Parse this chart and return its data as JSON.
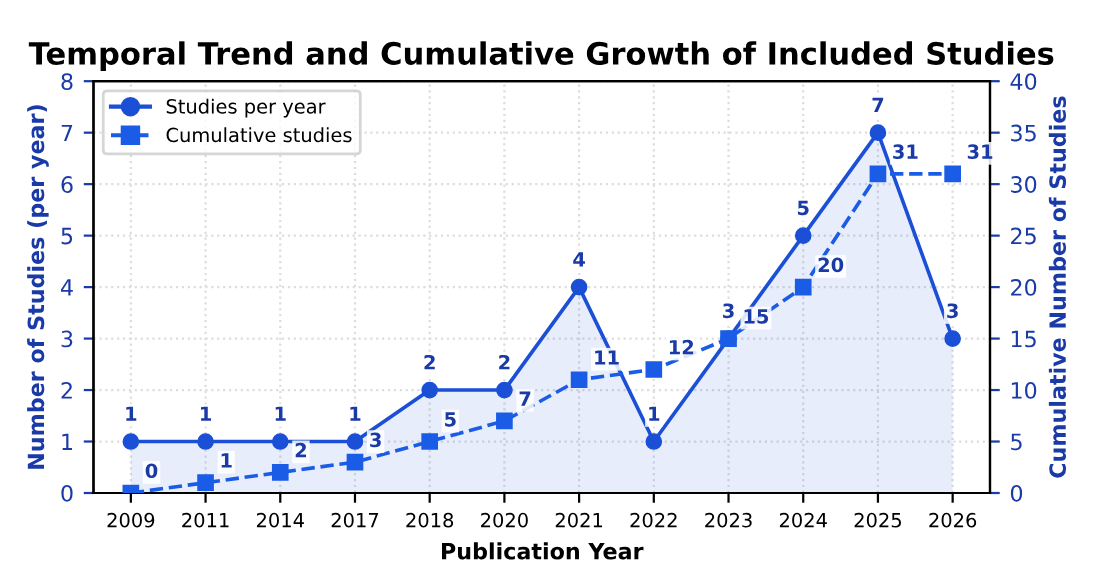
{
  "chart_data": {
    "type": "line",
    "title": "Temporal Trend and Cumulative Growth of Included Studies",
    "xlabel": "Publication Year",
    "ylabel": "Number of Studies (per year)",
    "y2label": "Cumulative Number of Studies",
    "categories": [
      "2009",
      "2011",
      "2014",
      "2017",
      "2018",
      "2020",
      "2021",
      "2022",
      "2023",
      "2024",
      "2025",
      "2026"
    ],
    "series": [
      {
        "name": "Studies per year",
        "type": "area",
        "color": "#1a4fd6",
        "marker": "circle",
        "line_style": "solid",
        "values": [
          1,
          1,
          1,
          1,
          2,
          2,
          4,
          1,
          3,
          5,
          7,
          3
        ]
      },
      {
        "name": "Cumulative studies",
        "axis": "y2",
        "color": "#1a5ce6",
        "marker": "square",
        "line_style": "dashed",
        "values": [
          0,
          1,
          2,
          3,
          5,
          7,
          11,
          12,
          15,
          20,
          31,
          31
        ]
      }
    ],
    "ylim": [
      0,
      8
    ],
    "yticks": [
      0,
      1,
      2,
      3,
      4,
      5,
      6,
      7,
      8
    ],
    "y2lim": [
      0,
      40
    ],
    "y2ticks": [
      0,
      5,
      10,
      15,
      20,
      25,
      30,
      35,
      40
    ],
    "grid": true,
    "legend": "top left",
    "data_labels": true
  }
}
